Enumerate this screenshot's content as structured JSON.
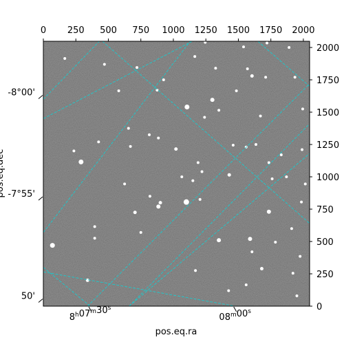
{
  "chart_data": {
    "type": "image",
    "title": "",
    "xlabel": "pos.eq.ra",
    "ylabel": "pos.eq.dec",
    "pixel_axes": {
      "x": {
        "lim": [
          0,
          2048
        ],
        "ticks": [
          0,
          250,
          500,
          750,
          1000,
          1250,
          1500,
          1750,
          2000
        ]
      },
      "y": {
        "lim": [
          0,
          2048
        ],
        "ticks": [
          0,
          250,
          500,
          750,
          1000,
          1250,
          1500,
          1750,
          2000
        ]
      }
    },
    "world_axes": {
      "ra_ticks": [
        {
          "h": "8",
          "m": "07",
          "s": "30",
          "pixel": [
            360,
            0
          ]
        },
        {
          "m": "08",
          "s": "00",
          "pixel": [
            1475,
            0
          ]
        }
      ],
      "dec_ticks": [
        {
          "label": "-8°00'",
          "pixel": [
            0,
            1620
          ]
        },
        {
          "label": "-7°55'",
          "pixel": [
            0,
            835
          ]
        },
        {
          "label": "50'",
          "pixel": [
            0,
            45
          ]
        }
      ]
    },
    "grid": {
      "color": "#22c5c8",
      "style": "dashed",
      "ra_lines": [
        [
          [
            0,
            300
          ],
          [
            360,
            0
          ]
        ],
        [
          [
            455,
            2048
          ],
          [
            2048,
            640
          ]
        ],
        [
          [
            0,
            1450
          ],
          [
            1145,
            2048
          ]
        ],
        [
          [
            660,
            0
          ],
          [
            2048,
            1180
          ]
        ],
        [
          [
            1650,
            2048
          ],
          [
            2048,
            1700
          ]
        ]
      ],
      "dec_lines": [
        [
          [
            0,
            1600
          ],
          [
            430,
            2048
          ]
        ],
        [
          [
            340,
            0
          ],
          [
            2048,
            1720
          ]
        ],
        [
          [
            0,
            570
          ],
          [
            1130,
            2048
          ]
        ],
        [
          [
            0,
            265
          ],
          [
            1475,
            0
          ]
        ],
        [
          [
            660,
            0
          ],
          [
            2048,
            1410
          ]
        ]
      ]
    },
    "stars": [
      [
        1105,
        1540,
        3.5
      ],
      [
        1300,
        1595,
        3
      ],
      [
        1020,
        1215,
        2.5
      ],
      [
        290,
        1115,
        3.5
      ],
      [
        1100,
        805,
        4
      ],
      [
        885,
        770,
        3
      ],
      [
        900,
        800,
        2.5
      ],
      [
        1350,
        510,
        3
      ],
      [
        1605,
        1780,
        2.5
      ],
      [
        70,
        470,
        3.5
      ],
      [
        1590,
        520,
        3
      ],
      [
        1680,
        290,
        2.5
      ],
      [
        340,
        200,
        2.5
      ],
      [
        705,
        725,
        2.5
      ],
      [
        1735,
        730,
        3
      ],
      [
        1430,
        1015,
        2.5
      ],
      [
        1150,
        970,
        2
      ],
      [
        580,
        1665,
        2
      ],
      [
        1190,
        1110,
        2
      ],
      [
        625,
        945,
        2
      ],
      [
        1785,
        495,
        2
      ],
      [
        1635,
        1250,
        2
      ],
      [
        1935,
        1770,
        2
      ],
      [
        1990,
        1210,
        2
      ],
      [
        2015,
        945,
        2
      ],
      [
        1240,
        1460,
        2
      ],
      [
        1560,
        1230,
        2
      ],
      [
        1485,
        1665,
        2
      ],
      [
        1995,
        1525,
        2
      ],
      [
        395,
        615,
        2
      ],
      [
        750,
        570,
        2
      ],
      [
        1425,
        120,
        2
      ],
      [
        1220,
        1040,
        2
      ],
      [
        820,
        850,
        2
      ],
      [
        1170,
        275,
        2
      ],
      [
        165,
        1915,
        2
      ],
      [
        1165,
        1930,
        2
      ],
      [
        1570,
        1835,
        2
      ],
      [
        1720,
        2035,
        2
      ],
      [
        1245,
        2040,
        2
      ],
      [
        720,
        1845,
        2
      ],
      [
        1760,
        985,
        2
      ],
      [
        1325,
        1840,
        2
      ],
      [
        1920,
        255,
        2
      ],
      [
        470,
        1870,
        2
      ],
      [
        875,
        1670,
        2
      ],
      [
        1735,
        1110,
        2
      ],
      [
        1540,
        2005,
        2
      ],
      [
        925,
        1750,
        2
      ],
      [
        1670,
        1470,
        2
      ],
      [
        1205,
        825,
        2
      ],
      [
        395,
        525,
        2
      ],
      [
        1910,
        600,
        2
      ],
      [
        1975,
        385,
        2
      ],
      [
        1460,
        1245,
        2
      ],
      [
        1065,
        1000,
        2
      ],
      [
        1350,
        1515,
        2
      ],
      [
        885,
        1300,
        2
      ],
      [
        1710,
        1770,
        2
      ],
      [
        1870,
        1000,
        2
      ],
      [
        1830,
        1170,
        2
      ],
      [
        235,
        1200,
        2
      ],
      [
        815,
        1325,
        2
      ],
      [
        670,
        1235,
        2
      ],
      [
        1605,
        420,
        2
      ],
      [
        1560,
        165,
        2
      ],
      [
        1985,
        805,
        2
      ],
      [
        1950,
        80,
        2
      ],
      [
        655,
        1375,
        2
      ],
      [
        1890,
        2000,
        2
      ],
      [
        425,
        1270,
        2
      ]
    ]
  }
}
